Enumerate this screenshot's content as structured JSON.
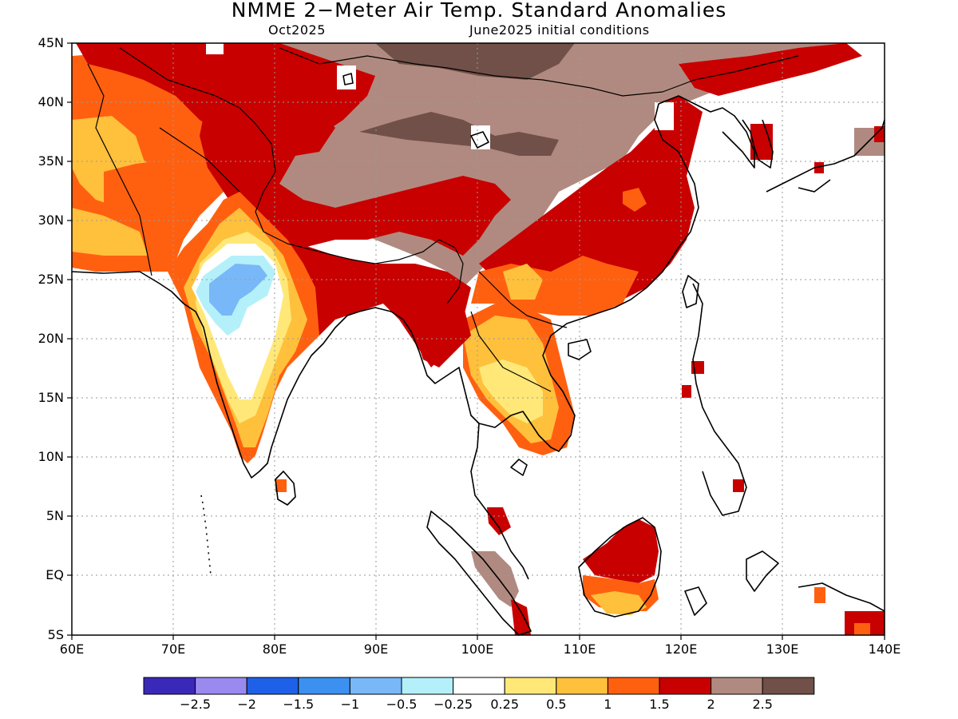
{
  "title": "NMME 2−Meter Air Temp. Standard Anomalies",
  "subtitle_left": "Oct2025",
  "subtitle_right": "June2025 initial conditions",
  "y_labels": [
    "45N",
    "40N",
    "35N",
    "30N",
    "25N",
    "20N",
    "15N",
    "10N",
    "5N",
    "EQ",
    "5S"
  ],
  "x_labels": [
    "60E",
    "70E",
    "80E",
    "90E",
    "100E",
    "110E",
    "120E",
    "130E",
    "140E"
  ],
  "colorbar": {
    "colors": [
      "#3a28b8",
      "#9a8af0",
      "#1f60e8",
      "#3c90f0",
      "#78b8f8",
      "#b4f0fa",
      "#ffffff",
      "#ffe878",
      "#ffc03c",
      "#ff6010",
      "#c80000",
      "#b08a80",
      "#705048"
    ],
    "labels": [
      "−2.5",
      "−2",
      "−1.5",
      "−1",
      "−0.5",
      "−0.25",
      "0.25",
      "0.5",
      "1",
      "1.5",
      "2",
      "2.5"
    ]
  },
  "colors": {
    "ocean": "#ffffff",
    "coast": "#000000",
    "grid": "#9a9a9a"
  }
}
